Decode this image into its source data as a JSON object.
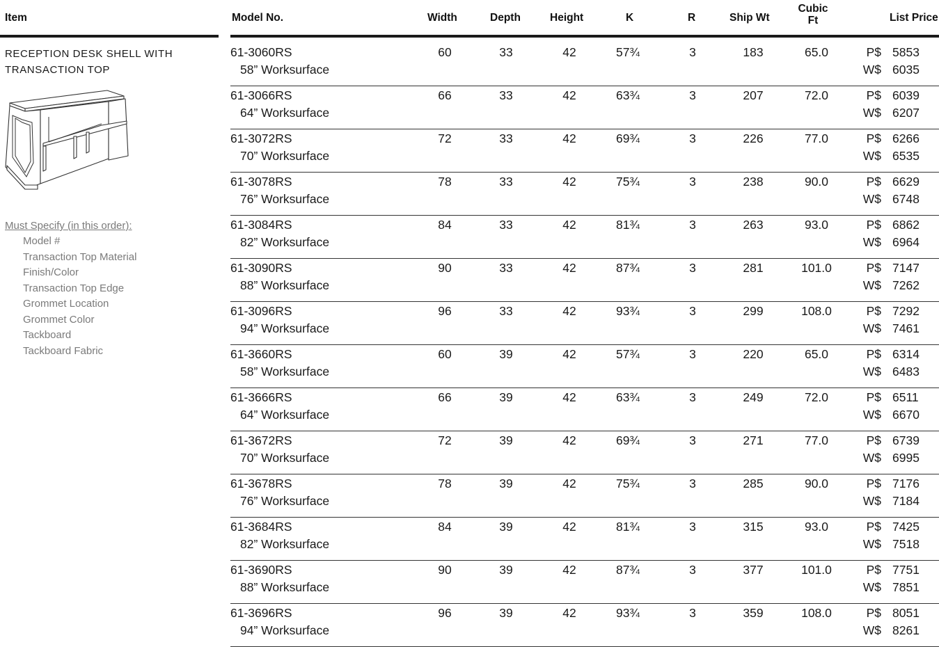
{
  "header": {
    "item": "Item",
    "model": "Model No.",
    "width": "Width",
    "depth": "Depth",
    "height": "Height",
    "k": "K",
    "r": "R",
    "ship_wt": "Ship Wt",
    "cubic_ft": "Cubic Ft",
    "list_price": "List Price"
  },
  "item": {
    "title": "RECEPTION DESK SHELL WITH TRANSACTION TOP",
    "specify_heading": "Must Specify (in this order):",
    "specify_items": [
      "Model #",
      "Transaction Top Material",
      "Finish/Color",
      "Transaction Top Edge",
      "Grommet Location",
      "Grommet Color",
      "Tackboard",
      "Tackboard Fabric"
    ]
  },
  "rows": [
    {
      "model": "61-3060RS",
      "ws": "58” Worksurface",
      "width": "60",
      "depth": "33",
      "height": "42",
      "k": "57¾",
      "r": "3",
      "ship": "183",
      "cubic": "65.0",
      "p_label": "P$",
      "p": "5853",
      "w_label": "W$",
      "w": "6035"
    },
    {
      "model": "61-3066RS",
      "ws": "64” Worksurface",
      "width": "66",
      "depth": "33",
      "height": "42",
      "k": "63¾",
      "r": "3",
      "ship": "207",
      "cubic": "72.0",
      "p_label": "P$",
      "p": "6039",
      "w_label": "W$",
      "w": "6207"
    },
    {
      "model": "61-3072RS",
      "ws": "70” Worksurface",
      "width": "72",
      "depth": "33",
      "height": "42",
      "k": "69¾",
      "r": "3",
      "ship": "226",
      "cubic": "77.0",
      "p_label": "P$",
      "p": "6266",
      "w_label": "W$",
      "w": "6535"
    },
    {
      "model": "61-3078RS",
      "ws": "76” Worksurface",
      "width": "78",
      "depth": "33",
      "height": "42",
      "k": "75¾",
      "r": "3",
      "ship": "238",
      "cubic": "90.0",
      "p_label": "P$",
      "p": "6629",
      "w_label": "W$",
      "w": "6748"
    },
    {
      "model": "61-3084RS",
      "ws": "82” Worksurface",
      "width": "84",
      "depth": "33",
      "height": "42",
      "k": "81¾",
      "r": "3",
      "ship": "263",
      "cubic": "93.0",
      "p_label": "P$",
      "p": "6862",
      "w_label": "W$",
      "w": "6964"
    },
    {
      "model": "61-3090RS",
      "ws": "88” Worksurface",
      "width": "90",
      "depth": "33",
      "height": "42",
      "k": "87¾",
      "r": "3",
      "ship": "281",
      "cubic": "101.0",
      "p_label": "P$",
      "p": "7147",
      "w_label": "W$",
      "w": "7262"
    },
    {
      "model": "61-3096RS",
      "ws": "94” Worksurface",
      "width": "96",
      "depth": "33",
      "height": "42",
      "k": "93¾",
      "r": "3",
      "ship": "299",
      "cubic": "108.0",
      "p_label": "P$",
      "p": "7292",
      "w_label": "W$",
      "w": "7461"
    },
    {
      "model": "61-3660RS",
      "ws": "58” Worksurface",
      "width": "60",
      "depth": "39",
      "height": "42",
      "k": "57¾",
      "r": "3",
      "ship": "220",
      "cubic": "65.0",
      "p_label": "P$",
      "p": "6314",
      "w_label": "W$",
      "w": "6483"
    },
    {
      "model": "61-3666RS",
      "ws": "64” Worksurface",
      "width": "66",
      "depth": "39",
      "height": "42",
      "k": "63¾",
      "r": "3",
      "ship": "249",
      "cubic": "72.0",
      "p_label": "P$",
      "p": "6511",
      "w_label": "W$",
      "w": "6670"
    },
    {
      "model": "61-3672RS",
      "ws": "70” Worksurface",
      "width": "72",
      "depth": "39",
      "height": "42",
      "k": "69¾",
      "r": "3",
      "ship": "271",
      "cubic": "77.0",
      "p_label": "P$",
      "p": "6739",
      "w_label": "W$",
      "w": "6995"
    },
    {
      "model": "61-3678RS",
      "ws": "76” Worksurface",
      "width": "78",
      "depth": "39",
      "height": "42",
      "k": "75¾",
      "r": "3",
      "ship": "285",
      "cubic": "90.0",
      "p_label": "P$",
      "p": "7176",
      "w_label": "W$",
      "w": "7184"
    },
    {
      "model": "61-3684RS",
      "ws": "82” Worksurface",
      "width": "84",
      "depth": "39",
      "height": "42",
      "k": "81¾",
      "r": "3",
      "ship": "315",
      "cubic": "93.0",
      "p_label": "P$",
      "p": "7425",
      "w_label": "W$",
      "w": "7518"
    },
    {
      "model": "61-3690RS",
      "ws": "88” Worksurface",
      "width": "90",
      "depth": "39",
      "height": "42",
      "k": "87¾",
      "r": "3",
      "ship": "377",
      "cubic": "101.0",
      "p_label": "P$",
      "p": "7751",
      "w_label": "W$",
      "w": "7851"
    },
    {
      "model": "61-3696RS",
      "ws": "94” Worksurface",
      "width": "96",
      "depth": "39",
      "height": "42",
      "k": "93¾",
      "r": "3",
      "ship": "359",
      "cubic": "108.0",
      "p_label": "P$",
      "p": "8051",
      "w_label": "W$",
      "w": "8261"
    }
  ]
}
